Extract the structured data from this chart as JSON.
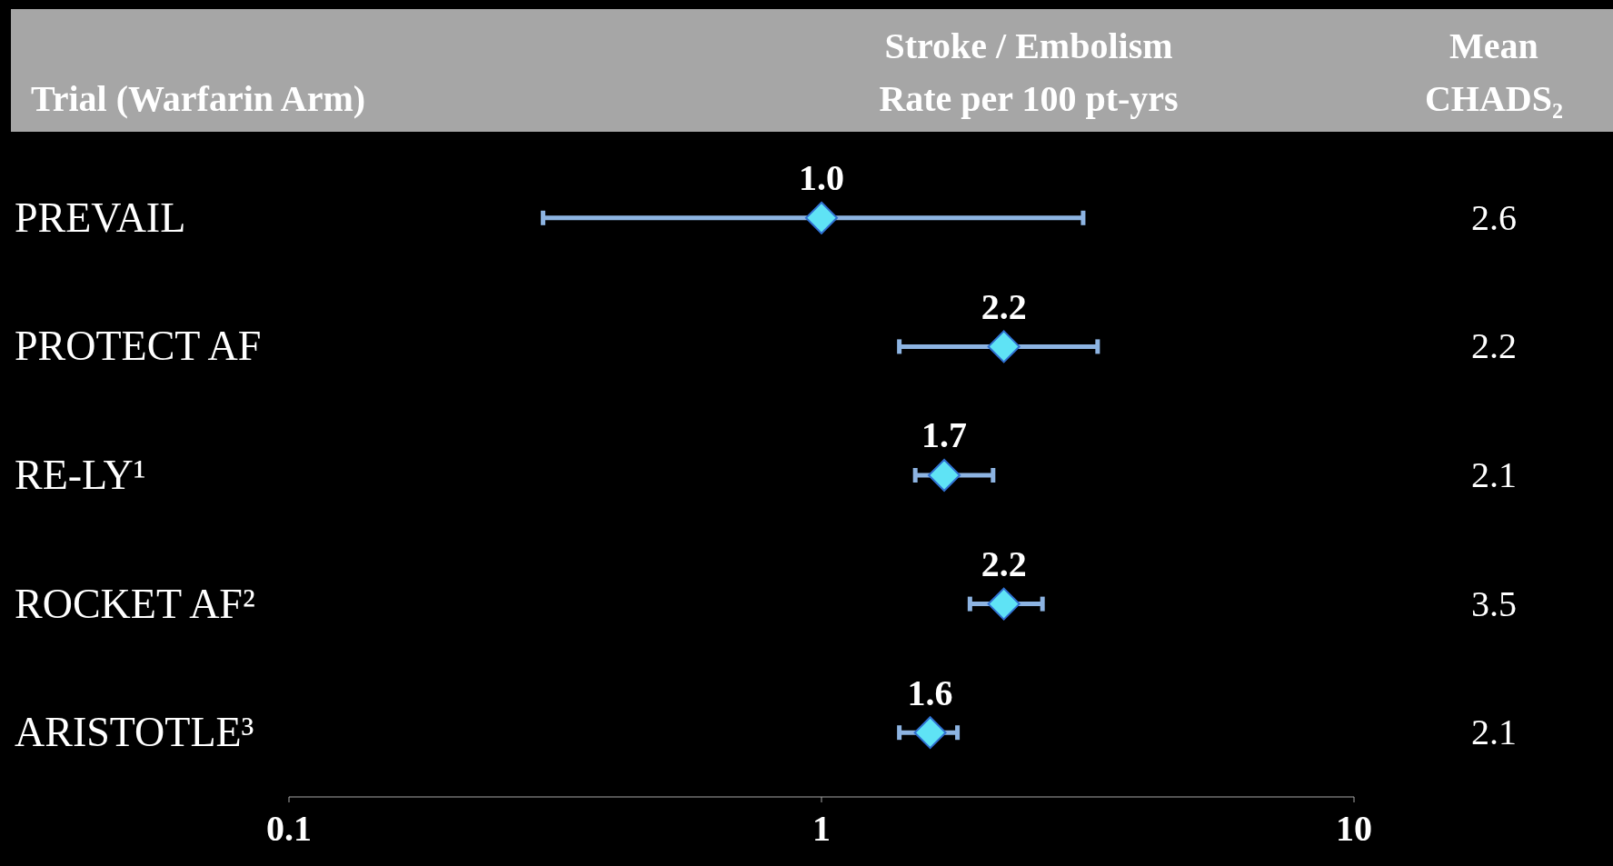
{
  "chart_data": {
    "type": "scatter",
    "orientation": "horizontal",
    "ylabel": "Trial (Warfarin Arm)",
    "xlabel": "Stroke / Embolism\nRate per 100 pt-yrs",
    "y2label": "Mean CHADS₂",
    "categories": [
      "PREVAIL",
      "PROTECT AF",
      "RE-LY¹",
      "ROCKET AF²",
      "ARISTOTLE³"
    ],
    "y2_categories": [
      "2.6",
      "2.2",
      "2.1",
      "3.5",
      "2.1"
    ],
    "series": [
      {
        "color": "#5fe3f5",
        "values": [
          1.0,
          2.2,
          1.7,
          2.2,
          1.6
        ],
        "errors": [
          [
            0.3,
            3.1
          ],
          [
            1.4,
            3.3
          ],
          [
            1.5,
            2.1
          ],
          [
            1.9,
            2.6
          ],
          [
            1.4,
            1.8
          ]
        ],
        "value_labels": [
          "1.0",
          "2.2",
          "1.7",
          "2.2",
          "1.6"
        ]
      }
    ],
    "xlim": [
      0.1,
      10
    ],
    "xticks": [
      0.1,
      1,
      10
    ],
    "log": "x",
    "marker": "diamond"
  }
}
